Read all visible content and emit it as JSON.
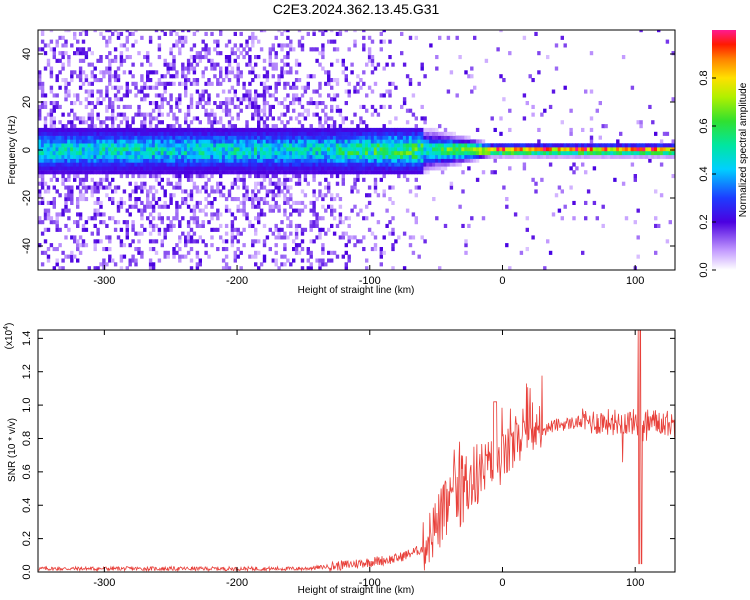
{
  "title": "C2E3.2024.362.13.45.G31",
  "chart_data": [
    {
      "type": "heatmap",
      "title": "C2E3.2024.362.13.45.G31",
      "xlabel": "Height of straight line (km)",
      "ylabel": "Frequency (Hz)",
      "xlim": [
        -350,
        130
      ],
      "ylim": [
        -50,
        50
      ],
      "x_ticks": [
        "-300",
        "-200",
        "-100",
        "0",
        "100"
      ],
      "y_ticks": [
        "-40",
        "-20",
        "0",
        "20",
        "40"
      ],
      "colorbar": {
        "label": "Normalized spectral amplitude",
        "range": [
          0,
          1
        ],
        "ticks": [
          "0.0",
          "0.2",
          "0.4",
          "0.6",
          "0.8"
        ]
      },
      "grid": false,
      "description_of_signal": [
        {
          "x_range": [
            -350,
            -130
          ],
          "spread_hz": 50,
          "peak_amplitude": 0.35
        },
        {
          "x_range": [
            -130,
            -60
          ],
          "spread_hz": 12,
          "peak_amplitude": 0.45
        },
        {
          "x_range": [
            -60,
            130
          ],
          "spread_hz": 3,
          "peak_amplitude": 0.95
        }
      ]
    },
    {
      "type": "line",
      "xlabel": "Height of straight line (km)",
      "ylabel": "SNR (10 * v/v)",
      "yscale_label": "(x10",
      "yscale_exp": "4",
      "xlim": [
        -350,
        130
      ],
      "ylim": [
        0,
        1.45
      ],
      "x_ticks": [
        "-300",
        "-200",
        "-100",
        "0",
        "100"
      ],
      "y_ticks": [
        "0.0",
        "0.2",
        "0.4",
        "0.6",
        "0.8",
        "1.0",
        "1.2",
        "1.4"
      ],
      "series": [
        {
          "color": "#e8403a",
          "x": [
            -350,
            -300,
            -250,
            -200,
            -150,
            -120,
            -100,
            -80,
            -60,
            -50,
            -40,
            -30,
            -20,
            -10,
            0,
            10,
            20,
            30,
            40,
            50,
            60,
            70,
            80,
            90,
            100,
            105,
            110,
            120,
            130
          ],
          "y": [
            0.02,
            0.02,
            0.02,
            0.02,
            0.02,
            0.04,
            0.06,
            0.08,
            0.14,
            0.28,
            0.4,
            0.5,
            0.58,
            0.62,
            0.68,
            0.76,
            0.82,
            0.85,
            0.88,
            0.89,
            0.9,
            0.9,
            0.9,
            0.9,
            0.9,
            0.88,
            0.9,
            0.9,
            0.88
          ]
        }
      ]
    }
  ]
}
